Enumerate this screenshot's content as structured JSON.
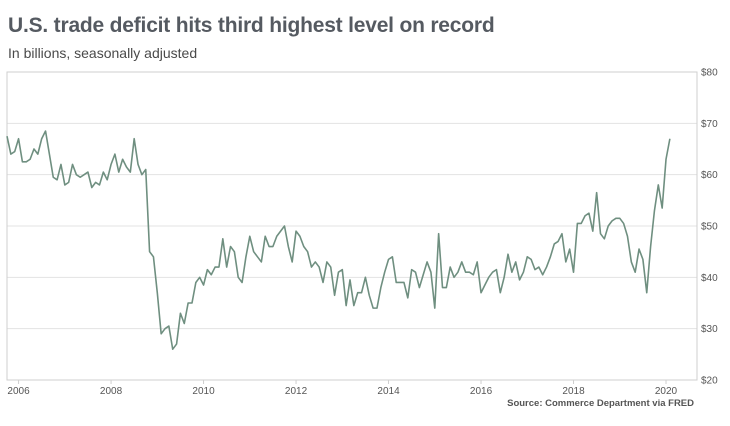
{
  "title": "U.S. trade deficit hits third highest level on record",
  "subtitle": "In billions, seasonally adjusted",
  "source": "Source: Commerce Department via FRED",
  "colors": {
    "line": "#6f8f80",
    "grid": "#e3e3e3",
    "frame": "#cfcfcf",
    "title": "#555a61"
  },
  "chart_data": {
    "type": "line",
    "title": "U.S. trade deficit hits third highest level on record",
    "subtitle": "In billions, seasonally adjusted",
    "xlabel": "",
    "ylabel": "",
    "x_start": "2005-10",
    "x_step": "1 month",
    "xlim": [
      2005.75,
      2020.67
    ],
    "ylim": [
      20,
      80
    ],
    "grid": true,
    "legend": "none",
    "x_ticks": [
      {
        "value": 2006,
        "label": "2006"
      },
      {
        "value": 2008,
        "label": "2008"
      },
      {
        "value": 2010,
        "label": "2010"
      },
      {
        "value": 2012,
        "label": "2012"
      },
      {
        "value": 2014,
        "label": "2014"
      },
      {
        "value": 2016,
        "label": "2016"
      },
      {
        "value": 2018,
        "label": "2018"
      },
      {
        "value": 2020,
        "label": "2020"
      }
    ],
    "y_ticks": [
      {
        "value": 80,
        "label": "$80"
      },
      {
        "value": 70,
        "label": "$70"
      },
      {
        "value": 60,
        "label": "$60"
      },
      {
        "value": 50,
        "label": "$50"
      },
      {
        "value": 40,
        "label": "$40"
      },
      {
        "value": 30,
        "label": "$30"
      },
      {
        "value": 20,
        "label": "$20"
      }
    ],
    "series": [
      {
        "values": [
          67.5,
          64,
          64.5,
          67,
          62.5,
          62.5,
          63,
          65,
          64,
          67,
          68.5,
          64,
          59.5,
          59,
          62,
          58,
          58.5,
          62,
          60,
          59.5,
          60,
          60.5,
          57.5,
          58.5,
          58,
          60.5,
          59,
          62,
          64,
          60.5,
          63,
          61.5,
          60.5,
          67,
          62,
          60,
          61,
          45,
          44,
          37,
          29,
          30,
          30.5,
          26,
          27,
          33,
          31,
          35,
          35,
          39,
          40,
          38.5,
          41.5,
          40.5,
          42,
          42,
          47.5,
          42,
          46,
          45,
          40,
          39,
          44,
          48,
          45,
          44,
          43,
          48,
          46,
          46,
          48,
          49,
          50,
          46,
          43,
          49,
          48,
          46,
          45,
          42,
          43,
          42,
          39,
          43,
          42,
          36.5,
          41,
          41.5,
          34.5,
          39.5,
          34.5,
          37,
          37,
          40,
          36.5,
          34,
          34,
          38,
          41,
          43.5,
          44,
          39,
          39,
          39,
          36,
          41.5,
          41,
          38,
          40.5,
          43,
          41,
          34,
          48.5,
          38,
          38,
          42,
          40,
          41,
          43,
          41,
          41,
          40.5,
          43,
          37,
          38.5,
          40,
          41,
          41.5,
          37,
          40,
          44.5,
          41,
          43,
          39.5,
          41,
          44,
          43.5,
          41.5,
          42,
          40.5,
          42,
          44,
          46.5,
          47,
          48.5,
          43,
          45.5,
          41,
          50.5,
          50.5,
          52,
          52.5,
          49,
          56.5,
          48.5,
          47.5,
          50,
          51,
          51.5,
          51.5,
          50.5,
          48,
          43,
          41,
          45.5,
          43.5,
          37,
          46,
          53,
          58,
          53.5,
          63,
          67
        ]
      }
    ]
  }
}
